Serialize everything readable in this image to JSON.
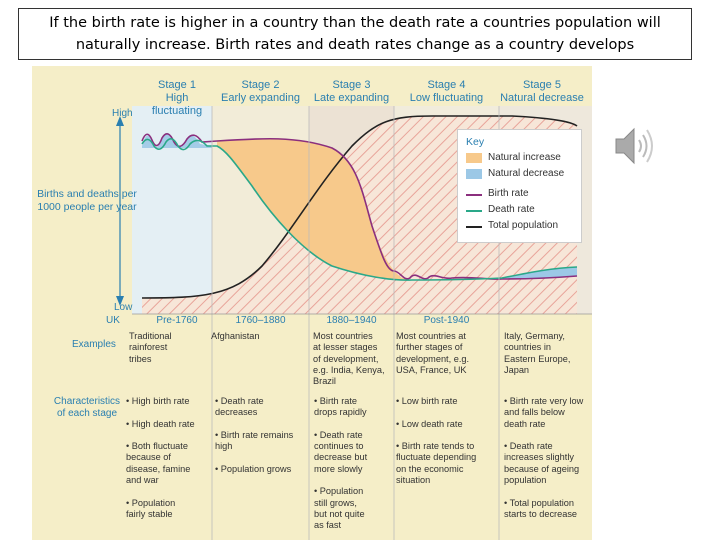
{
  "caption": "If the birth rate is higher in a country than the death rate a countries population will naturally increase.  Birth rates and death rates change as a country develops",
  "stages": [
    {
      "name": "Stage 1",
      "label": "High fluctuating"
    },
    {
      "name": "Stage 2",
      "label": "Early expanding"
    },
    {
      "name": "Stage 3",
      "label": "Late expanding"
    },
    {
      "name": "Stage 4",
      "label": "Low fluctuating"
    },
    {
      "name": "Stage 5",
      "label": "Natural decrease"
    }
  ],
  "axis": {
    "high": "High",
    "low": "Low",
    "ylabel": "Births and deaths per 1000 people per year",
    "uk": "UK"
  },
  "periods": [
    "Pre-1760",
    "1760–1880",
    "1880–1940",
    "Post-1940"
  ],
  "examples_label": "Examples",
  "examples": [
    "Traditional\nrainforest\ntribes",
    "Afghanistan",
    "Most countries\nat lesser stages\nof development,\ne.g. India, Kenya,\nBrazil",
    "Most countries at\nfurther stages of\ndevelopment, e.g.\nUSA, France, UK",
    "Italy, Germany,\ncountries in\nEastern Europe,\nJapan"
  ],
  "characteristics_label": "Characteristics\nof each stage",
  "characteristics": [
    "• High birth rate\n\n• High death rate\n\n• Both fluctuate\n   because of\n   disease, famine\n   and war\n\n• Population\n   fairly stable",
    "• Death rate\n   decreases\n\n• Birth rate remains\n   high\n\n• Population grows",
    "• Birth rate\n   drops rapidly\n\n• Death rate\n   continues to\n   decrease but\n   more slowly\n\n• Population\n   still grows,\n   but not quite\n   as fast",
    "• Low birth rate\n\n• Low death rate\n\n• Birth rate tends to\n   fluctuate depending\n   on the economic\n   situation",
    "• Birth rate very low\n   and falls below\n   death rate\n\n• Death rate\n   increases slightly\n   because of ageing\n   population\n\n• Total population\n   starts to decrease"
  ],
  "key": {
    "title": "Key",
    "items": [
      {
        "label": "Natural increase",
        "color": "#f7c98b"
      },
      {
        "label": "Natural decrease",
        "color": "#9cc8e6"
      },
      {
        "label": "Birth rate",
        "color": "#8b2f7e"
      },
      {
        "label": "Death rate",
        "color": "#2aa889"
      },
      {
        "label": "Total population",
        "color": "#222222"
      }
    ]
  },
  "colors": {
    "stage_text": "#2a7fb0",
    "hatch": "#e8a49a"
  }
}
